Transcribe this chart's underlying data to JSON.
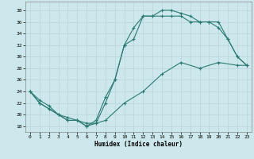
{
  "xlabel": "Humidex (Indice chaleur)",
  "bg_color": "#cce8ec",
  "line_color": "#2d7a72",
  "grid_color": "#b8d4d8",
  "xlim": [
    -0.5,
    23.5
  ],
  "ylim": [
    17.0,
    39.5
  ],
  "xticks": [
    0,
    1,
    2,
    3,
    4,
    5,
    6,
    7,
    8,
    9,
    10,
    11,
    12,
    13,
    14,
    15,
    16,
    17,
    18,
    19,
    20,
    21,
    22,
    23
  ],
  "yticks": [
    18,
    20,
    22,
    24,
    26,
    28,
    30,
    32,
    34,
    36,
    38
  ],
  "line1_x": [
    0,
    1,
    2,
    3,
    4,
    5,
    6,
    7,
    8,
    9,
    10,
    11,
    12,
    13,
    14,
    15,
    16,
    17,
    18,
    19,
    20,
    21,
    22,
    23
  ],
  "line1_y": [
    24,
    22,
    21,
    20,
    19,
    19,
    18,
    19,
    23,
    26,
    32,
    35,
    37,
    37,
    38,
    38,
    37.5,
    37,
    36,
    36,
    36,
    33,
    30,
    28.5
  ],
  "line2_x": [
    0,
    1,
    2,
    3,
    4,
    5,
    6,
    7,
    8,
    9,
    10,
    11,
    12,
    13,
    14,
    15,
    16,
    17,
    18,
    19,
    20,
    21,
    22,
    23
  ],
  "line2_y": [
    24,
    22,
    21,
    20,
    19,
    19,
    18,
    18.5,
    22,
    26,
    32,
    33,
    37,
    37,
    37,
    37,
    37,
    36,
    36,
    36,
    35,
    33,
    30,
    28.5
  ],
  "line3_x": [
    0,
    1,
    2,
    3,
    4,
    5,
    6,
    7,
    8,
    10,
    12,
    14,
    16,
    18,
    20,
    22,
    23
  ],
  "line3_y": [
    24,
    22.5,
    21.5,
    20,
    19.5,
    19,
    18.5,
    18.5,
    19,
    22,
    24,
    27,
    29,
    28,
    29,
    28.5,
    28.5
  ]
}
